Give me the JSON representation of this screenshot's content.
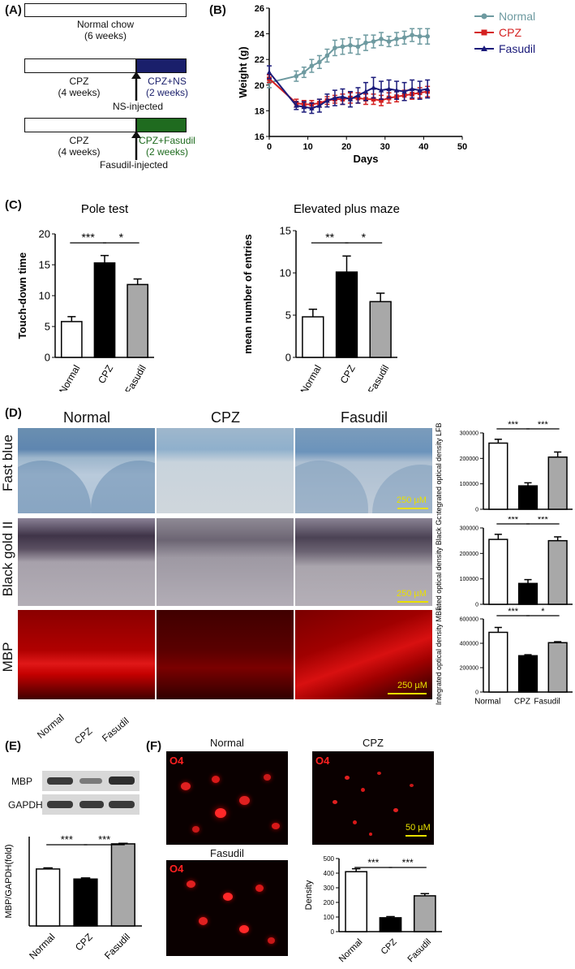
{
  "panels": {
    "A": {
      "label": "(A)",
      "rows": [
        {
          "box_text": "Normal chow",
          "box_sub": "(6 weeks)"
        },
        {
          "left_text": "CPZ",
          "left_sub": "(4 weeks)",
          "right_text": "CPZ+NS",
          "right_sub": "(2 weeks)",
          "arrow_text": "NS-injected",
          "color": "#1a1f6b"
        },
        {
          "left_text": "CPZ",
          "left_sub": "(4 weeks)",
          "right_text": "CPZ+Fasudil",
          "right_sub": "(2 weeks)",
          "arrow_text": "Fasudil-injected",
          "color": "#1f6b1f"
        }
      ]
    },
    "B": {
      "label": "(B)"
    },
    "C": {
      "label": "(C)"
    },
    "D": {
      "label": "(D)",
      "col_labels": [
        "Normal",
        "CPZ",
        "Fasudil"
      ],
      "row_labels": [
        "Fast blue",
        "Black gold II",
        "MBP"
      ],
      "scale_text": "250 µM"
    },
    "E": {
      "label": "(E)",
      "blot_cols": [
        "Normal",
        "CPZ",
        "Fasudil"
      ],
      "blot_rows": [
        "MBP",
        "GAPDH"
      ]
    },
    "F": {
      "label": "(F)",
      "titles": [
        "Normal",
        "CPZ",
        "Fasudil"
      ],
      "stain": "O4",
      "scale_text": "50 µM"
    }
  },
  "colors": {
    "normal_line": "#6e9aa0",
    "cpz_line": "#d42020",
    "fasudil_line": "#1a1a7a",
    "cpz_bar": "#000000",
    "fasudil_bar": "#a8a8a8",
    "normal_bar": "#ffffff"
  },
  "chart_data": [
    {
      "id": "B",
      "type": "line",
      "xlabel": "Days",
      "ylabel": "Weight (g)",
      "xlim": [
        0,
        50
      ],
      "ylim": [
        16,
        26
      ],
      "xticks": [
        0,
        10,
        20,
        30,
        40,
        50
      ],
      "yticks": [
        16,
        18,
        20,
        22,
        24,
        26
      ],
      "legend": "top-right",
      "series": [
        {
          "name": "Normal",
          "color": "#6e9aa0",
          "marker": "circle",
          "x": [
            0,
            7,
            9,
            11,
            13,
            15,
            17,
            19,
            21,
            23,
            25,
            27,
            29,
            31,
            33,
            35,
            37,
            39,
            41
          ],
          "y": [
            20.2,
            20.7,
            21.0,
            21.5,
            21.8,
            22.3,
            22.9,
            23.0,
            23.1,
            23.0,
            23.3,
            23.4,
            23.6,
            23.4,
            23.6,
            23.7,
            23.9,
            23.8,
            23.8
          ],
          "err": [
            0.4,
            0.4,
            0.4,
            0.5,
            0.5,
            0.5,
            0.6,
            0.6,
            0.6,
            0.6,
            0.6,
            0.5,
            0.5,
            0.4,
            0.5,
            0.5,
            0.5,
            0.6,
            0.6
          ]
        },
        {
          "name": "CPZ",
          "color": "#d42020",
          "marker": "square",
          "x": [
            0,
            7,
            9,
            11,
            13,
            15,
            17,
            19,
            21,
            23,
            25,
            27,
            29,
            31,
            33,
            35,
            37,
            39,
            41
          ],
          "y": [
            20.5,
            18.6,
            18.5,
            18.5,
            18.6,
            18.8,
            18.9,
            18.9,
            19.0,
            19.0,
            18.9,
            18.9,
            18.8,
            19.0,
            19.1,
            19.2,
            19.3,
            19.4,
            19.5
          ],
          "err": [
            0.3,
            0.3,
            0.3,
            0.3,
            0.3,
            0.3,
            0.3,
            0.4,
            0.4,
            0.4,
            0.4,
            0.4,
            0.4,
            0.4,
            0.4,
            0.4,
            0.4,
            0.4,
            0.4
          ]
        },
        {
          "name": "Fasudil",
          "color": "#1a1a7a",
          "marker": "triangle",
          "x": [
            0,
            7,
            9,
            11,
            13,
            15,
            17,
            19,
            21,
            23,
            25,
            27,
            29,
            31,
            33,
            35,
            37,
            39,
            41
          ],
          "y": [
            21.0,
            18.4,
            18.3,
            18.2,
            18.4,
            18.8,
            19.0,
            19.1,
            18.9,
            19.2,
            19.5,
            19.8,
            19.6,
            19.7,
            19.6,
            19.5,
            19.7,
            19.6,
            19.7
          ],
          "err": [
            0.5,
            0.3,
            0.4,
            0.4,
            0.5,
            0.5,
            0.6,
            0.6,
            0.6,
            0.6,
            0.7,
            0.8,
            0.7,
            0.7,
            0.7,
            0.7,
            0.7,
            0.7,
            0.7
          ]
        }
      ]
    },
    {
      "id": "C1",
      "type": "bar",
      "title": "Pole test",
      "ylabel": "Touch-down time",
      "categories": [
        "Normal",
        "CPZ",
        "Fasudil"
      ],
      "values": [
        5.8,
        15.3,
        11.8
      ],
      "err": [
        0.8,
        1.2,
        0.9
      ],
      "ylim": [
        0,
        20
      ],
      "yticks": [
        0,
        5,
        10,
        15,
        20
      ],
      "significance": [
        {
          "from": 0,
          "to": 1,
          "label": "***"
        },
        {
          "from": 1,
          "to": 2,
          "label": "*"
        }
      ]
    },
    {
      "id": "C2",
      "type": "bar",
      "title": "Elevated plus maze",
      "ylabel": "mean number of entries",
      "categories": [
        "Normal",
        "CPZ",
        "Fasudil"
      ],
      "values": [
        4.8,
        10.1,
        6.6
      ],
      "err": [
        0.9,
        1.9,
        1.0
      ],
      "ylim": [
        0,
        15
      ],
      "yticks": [
        0,
        5,
        10,
        15
      ],
      "significance": [
        {
          "from": 0,
          "to": 1,
          "label": "**"
        },
        {
          "from": 1,
          "to": 2,
          "label": "*"
        }
      ]
    },
    {
      "id": "D1",
      "type": "bar",
      "ylabel": "Integrated optical density LFB",
      "categories": [
        "Normal",
        "CPZ",
        "Fasudil"
      ],
      "values": [
        260000,
        92000,
        205000
      ],
      "err": [
        15000,
        12000,
        20000
      ],
      "ylim": [
        0,
        300000
      ],
      "yticks": [
        0,
        100000,
        200000,
        300000
      ],
      "show_xlabels": false,
      "significance": [
        {
          "from": 0,
          "to": 1,
          "label": "***"
        },
        {
          "from": 1,
          "to": 2,
          "label": "***"
        }
      ]
    },
    {
      "id": "D2",
      "type": "bar",
      "ylabel": "Integrated optical density Black Gold II",
      "categories": [
        "Normal",
        "CPZ",
        "Fasudil"
      ],
      "values": [
        255000,
        82000,
        250000
      ],
      "err": [
        20000,
        15000,
        15000
      ],
      "ylim": [
        0,
        300000
      ],
      "yticks": [
        0,
        100000,
        200000,
        300000
      ],
      "show_xlabels": false,
      "significance": [
        {
          "from": 0,
          "to": 1,
          "label": "***"
        },
        {
          "from": 1,
          "to": 2,
          "label": "***"
        }
      ]
    },
    {
      "id": "D3",
      "type": "bar",
      "ylabel": "Integrated optical density MBP",
      "categories": [
        "Normal",
        "CPZ",
        "Fasudil"
      ],
      "values": [
        490000,
        298000,
        405000
      ],
      "err": [
        40000,
        8000,
        8000
      ],
      "ylim": [
        0,
        600000
      ],
      "yticks": [
        0,
        200000,
        400000,
        600000
      ],
      "show_xlabels": true,
      "significance": [
        {
          "from": 0,
          "to": 1,
          "label": "***"
        },
        {
          "from": 1,
          "to": 2,
          "label": "*"
        }
      ]
    },
    {
      "id": "E",
      "type": "bar",
      "ylabel": "MBP/GAPDH(fold)",
      "categories": [
        "Normal",
        "CPZ",
        "Fasudil"
      ],
      "values": [
        1.02,
        0.84,
        1.47
      ],
      "err": [
        0.02,
        0.02,
        0.01
      ],
      "ylim": [
        0,
        1.6
      ],
      "show_xlabels": true,
      "significance": [
        {
          "from": 0,
          "to": 1,
          "label": "***"
        },
        {
          "from": 1,
          "to": 2,
          "label": "***"
        }
      ]
    },
    {
      "id": "F",
      "type": "bar",
      "ylabel": "Density",
      "categories": [
        "Normal",
        "CPZ",
        "Fasudil"
      ],
      "values": [
        410,
        95,
        245
      ],
      "err": [
        20,
        8,
        15
      ],
      "ylim": [
        0,
        500
      ],
      "yticks": [
        0,
        100,
        200,
        300,
        400,
        500
      ],
      "show_xlabels": true,
      "significance": [
        {
          "from": 0,
          "to": 1,
          "label": "***"
        },
        {
          "from": 1,
          "to": 2,
          "label": "***"
        }
      ]
    }
  ]
}
